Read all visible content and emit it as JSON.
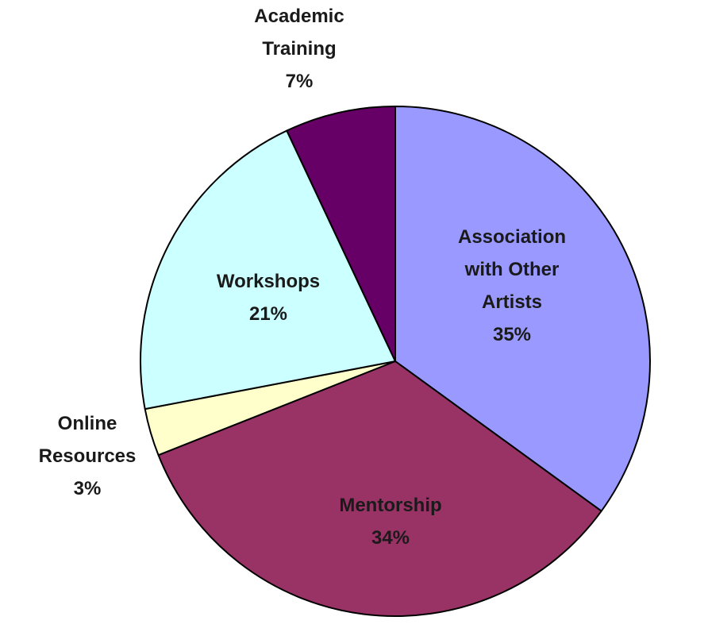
{
  "chart_data": {
    "type": "pie",
    "title": "",
    "slices": [
      {
        "label_lines": [
          "Association",
          "with Other",
          "Artists"
        ],
        "pct_label": "35%",
        "value": 35,
        "color": "#9999FF"
      },
      {
        "label_lines": [
          "Mentorship"
        ],
        "pct_label": "34%",
        "value": 34,
        "color": "#993366"
      },
      {
        "label_lines": [
          "Online",
          "Resources"
        ],
        "pct_label": "3%",
        "value": 3,
        "color": "#FFFFCC"
      },
      {
        "label_lines": [
          "Workshops"
        ],
        "pct_label": "21%",
        "value": 21,
        "color": "#CCFFFF"
      },
      {
        "label_lines": [
          "Academic",
          "Training"
        ],
        "pct_label": "7%",
        "value": 7,
        "color": "#660066"
      }
    ],
    "start_angle_deg": 0,
    "direction": "clockwise",
    "legend": "none"
  }
}
